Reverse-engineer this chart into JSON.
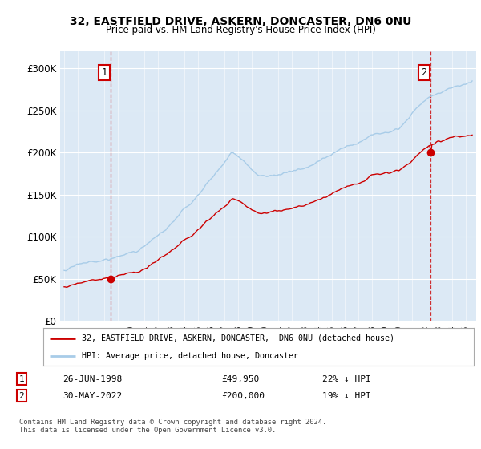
{
  "title1": "32, EASTFIELD DRIVE, ASKERN, DONCASTER, DN6 0NU",
  "title2": "Price paid vs. HM Land Registry's House Price Index (HPI)",
  "ylabel_ticks": [
    "£0",
    "£50K",
    "£100K",
    "£150K",
    "£200K",
    "£250K",
    "£300K"
  ],
  "ytick_vals": [
    0,
    50000,
    100000,
    150000,
    200000,
    250000,
    300000
  ],
  "ylim": [
    0,
    320000
  ],
  "xlim_start": 1994.7,
  "xlim_end": 2025.8,
  "sale1_date": 1998.483,
  "sale1_price": 49950,
  "sale2_date": 2022.413,
  "sale2_price": 200000,
  "hpi_color": "#a8cce8",
  "price_color": "#cc0000",
  "dashed_color": "#cc0000",
  "bg_color": "#dce9f5",
  "legend_label1": "32, EASTFIELD DRIVE, ASKERN, DONCASTER,  DN6 0NU (detached house)",
  "legend_label2": "HPI: Average price, detached house, Doncaster",
  "note1_date": "26-JUN-1998",
  "note1_price": "£49,950",
  "note1_hpi": "22% ↓ HPI",
  "note2_date": "30-MAY-2022",
  "note2_price": "£200,000",
  "note2_hpi": "19% ↓ HPI",
  "footer": "Contains HM Land Registry data © Crown copyright and database right 2024.\nThis data is licensed under the Open Government Licence v3.0."
}
